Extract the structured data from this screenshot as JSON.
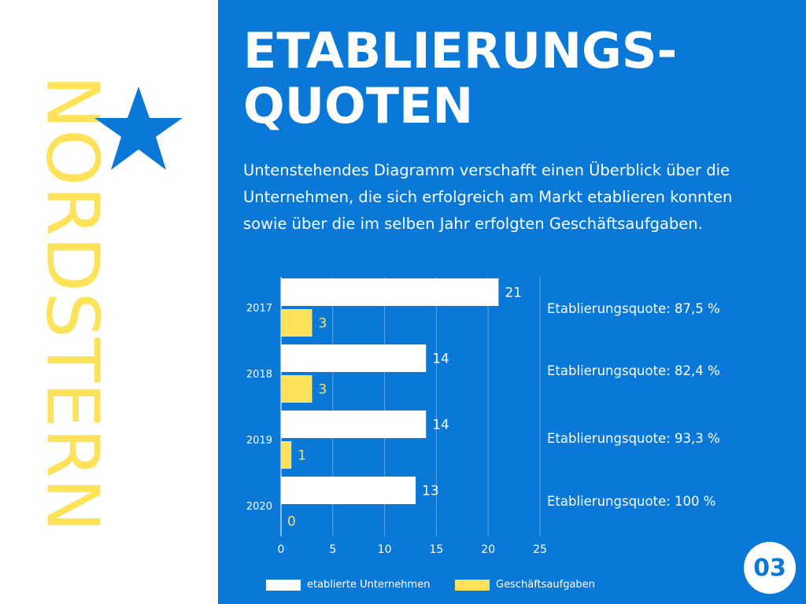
{
  "brand": {
    "name": "NORDSTERN"
  },
  "title": {
    "line1": "ETABLIERUNGS-",
    "line2": "QUOTEN"
  },
  "intro": "Untenstehendes Diagramm verschafft einen Überblick über die Unternehmen, die sich erfolgreich am Markt etablieren konnten sowie über die im selben Jahr erfolgten Geschäftsaufgaben.",
  "page_number": "03",
  "colors": {
    "panel": "#0978d6",
    "established": "#ffffff",
    "closures": "#fde25a",
    "brand": "#fde25a",
    "star": "#0978d6"
  },
  "chart_data": {
    "type": "bar",
    "orientation": "horizontal",
    "title": "",
    "xlabel": "",
    "ylabel": "",
    "categories": [
      "2017",
      "2018",
      "2019",
      "2020"
    ],
    "series": [
      {
        "name": "etablierte Unternehmen",
        "values": [
          21,
          14,
          14,
          13
        ]
      },
      {
        "name": "Geschäftsaufgaben",
        "values": [
          3,
          3,
          1,
          0
        ]
      }
    ],
    "x_ticks": [
      "0",
      "5",
      "10",
      "15",
      "20",
      "25"
    ],
    "xlim": [
      0,
      25
    ],
    "grid": true,
    "legend": "bottom",
    "annotations": [
      "Etablierungsquote: 87,5 %",
      "Etablierungsquote: 82,4 %",
      "Etablierungsquote: 93,3 %",
      "Etablierungsquote: 100 %"
    ]
  }
}
